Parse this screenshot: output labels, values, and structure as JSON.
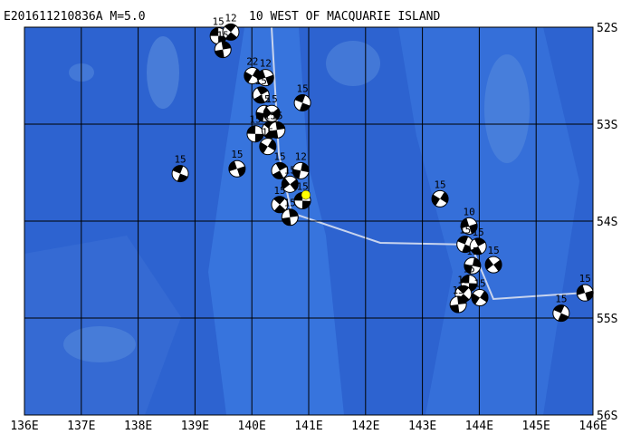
{
  "title_left": "E201611210836A M=5.0",
  "title_right": "10 WEST OF MACQUARIE ISLAND",
  "map": {
    "lonlim": [
      136,
      146
    ],
    "latlim": [
      52,
      56
    ],
    "grid": true,
    "lonticks": [
      {
        "value": 136,
        "label": "136E"
      },
      {
        "value": 137,
        "label": "137E"
      },
      {
        "value": 138,
        "label": "138E"
      },
      {
        "value": 139,
        "label": "139E"
      },
      {
        "value": 140,
        "label": "140E"
      },
      {
        "value": 141,
        "label": "141E"
      },
      {
        "value": 142,
        "label": "142E"
      },
      {
        "value": 143,
        "label": "143E"
      },
      {
        "value": 144,
        "label": "144E"
      },
      {
        "value": 145,
        "label": "145E"
      },
      {
        "value": 146,
        "label": "146E"
      }
    ],
    "latticks": [
      {
        "value": 52,
        "label": "52S"
      },
      {
        "value": 53,
        "label": "53S"
      },
      {
        "value": 54,
        "label": "54S"
      },
      {
        "value": 55,
        "label": "55S"
      },
      {
        "value": 56,
        "label": "56S"
      }
    ],
    "main_event": {
      "lon": 140.95,
      "lat": 53.73,
      "color": "#ffff00"
    },
    "events": [
      {
        "lon": 139.41,
        "lat": 52.09,
        "depth": 15
      },
      {
        "lon": 139.63,
        "lat": 52.05,
        "depth": 12
      },
      {
        "lon": 139.49,
        "lat": 52.23,
        "depth": 15
      },
      {
        "lon": 140.01,
        "lat": 52.5,
        "depth": 22
      },
      {
        "lon": 140.24,
        "lat": 52.52,
        "depth": 12
      },
      {
        "lon": 140.89,
        "lat": 52.78,
        "depth": 15
      },
      {
        "lon": 140.16,
        "lat": 52.7,
        "depth": 15
      },
      {
        "lon": 140.22,
        "lat": 52.89,
        "depth": 15
      },
      {
        "lon": 140.35,
        "lat": 52.89,
        "depth": 15
      },
      {
        "lon": 140.06,
        "lat": 53.1,
        "depth": 15
      },
      {
        "lon": 140.32,
        "lat": 53.06,
        "depth": 15
      },
      {
        "lon": 140.44,
        "lat": 53.06,
        "depth": 15
      },
      {
        "lon": 140.28,
        "lat": 53.23,
        "depth": 15
      },
      {
        "lon": 139.74,
        "lat": 53.46,
        "depth": 15
      },
      {
        "lon": 138.74,
        "lat": 53.51,
        "depth": 15
      },
      {
        "lon": 140.49,
        "lat": 53.48,
        "depth": 15
      },
      {
        "lon": 140.86,
        "lat": 53.48,
        "depth": 12
      },
      {
        "lon": 140.67,
        "lat": 53.62,
        "depth": 15
      },
      {
        "lon": 140.89,
        "lat": 53.79,
        "depth": 15
      },
      {
        "lon": 140.49,
        "lat": 53.83,
        "depth": 15
      },
      {
        "lon": 140.67,
        "lat": 53.96,
        "depth": 15
      },
      {
        "lon": 143.31,
        "lat": 53.77,
        "depth": 15
      },
      {
        "lon": 143.82,
        "lat": 54.05,
        "depth": 10
      },
      {
        "lon": 143.75,
        "lat": 54.24,
        "depth": 15
      },
      {
        "lon": 143.98,
        "lat": 54.26,
        "depth": 15
      },
      {
        "lon": 143.88,
        "lat": 54.46,
        "depth": 15
      },
      {
        "lon": 144.25,
        "lat": 54.45,
        "depth": 15
      },
      {
        "lon": 143.82,
        "lat": 54.64,
        "depth": 15
      },
      {
        "lon": 143.72,
        "lat": 54.75,
        "depth": 15
      },
      {
        "lon": 143.63,
        "lat": 54.86,
        "depth": 15
      },
      {
        "lon": 144.01,
        "lat": 54.79,
        "depth": 15
      },
      {
        "lon": 145.86,
        "lat": 54.74,
        "depth": 15
      },
      {
        "lon": 145.44,
        "lat": 54.95,
        "depth": 15
      }
    ]
  }
}
